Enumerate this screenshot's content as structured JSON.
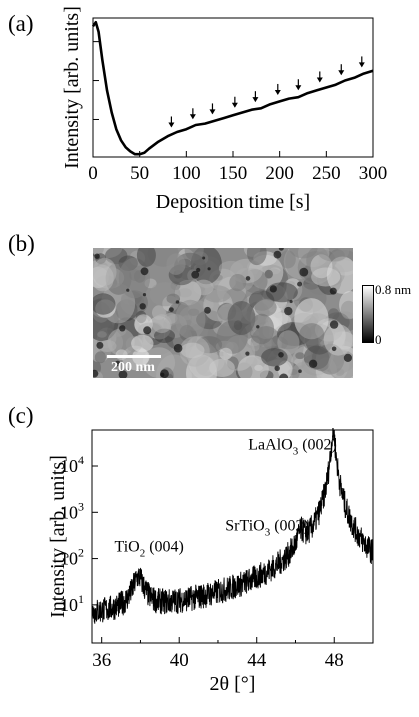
{
  "panel_labels": [
    "(a)",
    "(b)",
    "(c)"
  ],
  "afm": {
    "scalebar_label": "200 nm",
    "colorbar_max": "0.8 nm",
    "colorbar_min": "0"
  },
  "chart_data": [
    {
      "type": "line",
      "panel": "(a)",
      "xlabel": "Deposition time [s]",
      "ylabel": "Intensity [arb. units]",
      "xlim": [
        0,
        300
      ],
      "ylim": [
        0,
        1
      ],
      "x_ticks": [
        0,
        50,
        100,
        150,
        200,
        250,
        300
      ],
      "y_tick_labels_shown": false,
      "grid": false,
      "series": [
        {
          "x": [
            0,
            3,
            6,
            10,
            15,
            20,
            25,
            30,
            35,
            40,
            45,
            50,
            55,
            60,
            70,
            80,
            90,
            100,
            110,
            120,
            130,
            140,
            150,
            160,
            170,
            180,
            190,
            200,
            210,
            220,
            230,
            240,
            250,
            260,
            270,
            280,
            290,
            300
          ],
          "y": [
            0.94,
            0.97,
            0.9,
            0.7,
            0.48,
            0.32,
            0.2,
            0.12,
            0.07,
            0.04,
            0.02,
            0.02,
            0.03,
            0.06,
            0.11,
            0.15,
            0.18,
            0.2,
            0.23,
            0.24,
            0.26,
            0.28,
            0.3,
            0.32,
            0.34,
            0.35,
            0.38,
            0.4,
            0.42,
            0.43,
            0.46,
            0.48,
            0.5,
            0.52,
            0.55,
            0.57,
            0.6,
            0.62
          ]
        }
      ],
      "annotations": {
        "arrow_x": [
          84,
          107,
          128,
          152,
          174,
          198,
          220,
          243,
          266,
          288
        ]
      }
    },
    {
      "type": "line",
      "panel": "(c)",
      "xlabel": "2θ [°]",
      "ylabel": "Intensity [arb. units]",
      "xlim": [
        35.5,
        50
      ],
      "ylim": [
        1.5,
        60000
      ],
      "yscale": "log",
      "x_ticks": [
        36,
        40,
        44,
        48
      ],
      "y_ticks": [
        {
          "label": "10",
          "exp": "1",
          "value": 10
        },
        {
          "label": "10",
          "exp": "2",
          "value": 100
        },
        {
          "label": "10",
          "exp": "3",
          "value": 1000
        },
        {
          "label": "10",
          "exp": "4",
          "value": 10000
        }
      ],
      "grid": false,
      "peaks": [
        {
          "name": "TiO",
          "sub": "2",
          "rest": " (004)",
          "x": 37.9,
          "y": 35
        },
        {
          "name": "SrTiO",
          "sub": "3",
          "rest": " (002)",
          "x": 46.3,
          "y": 220
        },
        {
          "name": "LaAlO",
          "sub": "3",
          "rest": " (002)",
          "x": 47.95,
          "y": 55000
        }
      ],
      "baseline": 3
    }
  ]
}
